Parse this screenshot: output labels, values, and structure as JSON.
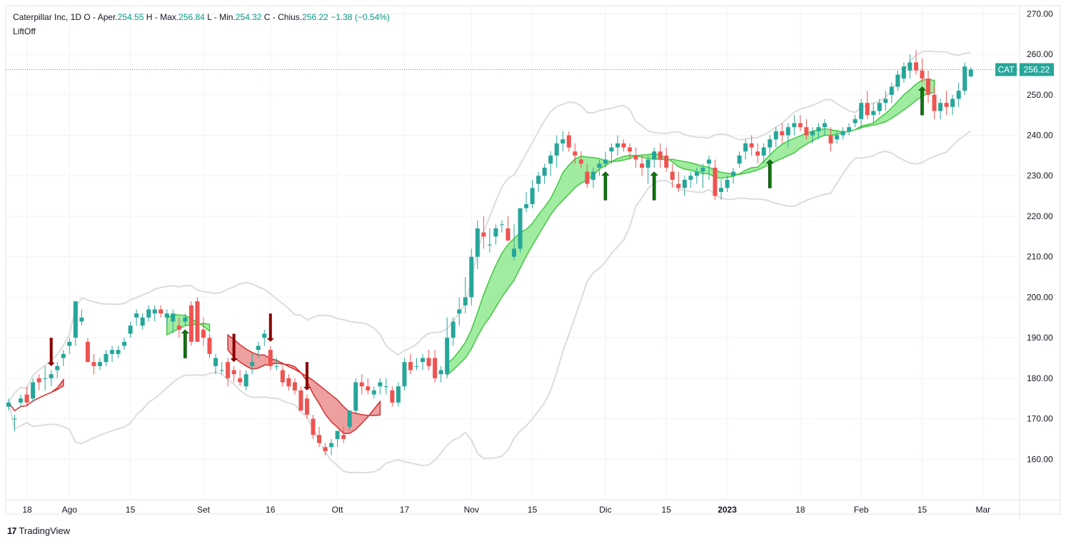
{
  "legend": {
    "symbol": "Caterpillar Inc, 1D",
    "open_label": "O - Aper.",
    "open": "254.55",
    "high_label": "H - Max.",
    "high": "256.84",
    "low_label": "L - Min.",
    "low": "254.32",
    "close_label": "C - Chius.",
    "close": "256.22",
    "change": "−1.38 (−0.54%)",
    "indicator": "LiftOff"
  },
  "price_tag": {
    "ticker": "CAT",
    "value": "256.22",
    "color": "#26a69a"
  },
  "brand": "TradingView",
  "colors": {
    "up": "#26a69a",
    "down": "#ef5350",
    "green_band": "#82e682",
    "red_band": "#e88080",
    "bb": "#dcdcdc"
  },
  "chart_data": {
    "type": "candlestick",
    "ylim": [
      150,
      272
    ],
    "last_price": 256.22,
    "y_ticks": [
      "270.00",
      "260.00",
      "250.00",
      "240.00",
      "230.00",
      "220.00",
      "210.00",
      "200.00",
      "190.00",
      "180.00",
      "170.00",
      "160.00"
    ],
    "y_tick_values": [
      270,
      260,
      250,
      240,
      230,
      220,
      210,
      200,
      190,
      180,
      170,
      160
    ],
    "x_ticks": [
      {
        "label": "18",
        "i": 0
      },
      {
        "label": "Ago",
        "i": 10
      },
      {
        "label": "15",
        "i": 20
      },
      {
        "label": "Set",
        "i": 32
      },
      {
        "label": "16",
        "i": 43
      },
      {
        "label": "Ott",
        "i": 54
      },
      {
        "label": "17",
        "i": 65
      },
      {
        "label": "Nov",
        "i": 76
      },
      {
        "label": "15",
        "i": 86
      },
      {
        "label": "Dic",
        "i": 98
      },
      {
        "label": "15",
        "i": 108
      },
      {
        "label": "2023",
        "i": 118,
        "bold": true
      },
      {
        "label": "18",
        "i": 130
      },
      {
        "label": "Feb",
        "i": 140
      },
      {
        "label": "15",
        "i": 150
      },
      {
        "label": "Mar",
        "i": 160
      }
    ],
    "candles": [
      [
        173,
        175,
        172,
        174
      ],
      [
        170,
        171,
        167,
        170
      ],
      [
        174,
        176,
        173,
        175
      ],
      [
        176,
        178,
        173,
        174
      ],
      [
        175,
        180,
        174,
        179
      ],
      [
        180,
        181,
        177,
        179
      ],
      [
        180,
        183,
        177,
        180
      ],
      [
        180,
        182,
        178,
        181
      ],
      [
        182,
        184,
        180,
        183
      ],
      [
        185,
        187,
        183,
        186
      ],
      [
        188,
        190,
        186,
        189
      ],
      [
        190,
        199,
        188,
        199
      ],
      [
        194,
        197,
        193,
        195
      ],
      [
        189,
        190,
        185,
        184
      ],
      [
        184,
        186,
        181,
        183
      ],
      [
        183,
        185,
        182,
        184
      ],
      [
        184,
        187,
        183,
        186
      ],
      [
        186,
        188,
        184,
        187
      ],
      [
        186,
        188,
        185,
        187
      ],
      [
        188,
        190,
        187,
        189
      ],
      [
        191,
        194,
        190,
        193
      ],
      [
        195,
        197,
        193,
        196
      ],
      [
        193,
        196,
        192,
        195
      ],
      [
        195,
        198,
        194,
        197
      ],
      [
        196,
        198,
        194,
        197
      ],
      [
        197,
        198,
        195,
        196
      ],
      [
        195,
        197,
        193,
        196
      ],
      [
        194,
        197,
        191,
        196
      ],
      [
        193,
        195,
        190,
        192
      ],
      [
        194,
        196,
        193,
        195
      ],
      [
        198,
        199,
        188,
        189
      ],
      [
        199,
        200,
        189,
        189
      ],
      [
        192,
        195,
        188,
        190
      ],
      [
        190,
        191,
        185,
        186
      ],
      [
        183,
        186,
        181,
        185
      ],
      [
        182,
        184,
        181,
        182
      ],
      [
        184,
        185,
        178,
        180
      ],
      [
        182,
        183,
        179,
        181
      ],
      [
        180,
        182,
        178,
        179
      ],
      [
        178,
        182,
        177,
        181
      ],
      [
        183,
        186,
        181,
        184
      ],
      [
        187,
        189,
        185,
        188
      ],
      [
        190,
        192,
        188,
        191
      ],
      [
        187,
        188,
        182,
        183
      ],
      [
        183,
        185,
        182,
        183
      ],
      [
        182,
        183,
        178,
        179
      ],
      [
        180,
        181,
        177,
        178
      ],
      [
        179,
        180,
        176,
        177
      ],
      [
        177,
        178,
        172,
        172
      ],
      [
        175,
        176,
        170,
        171
      ],
      [
        170,
        171,
        165,
        166
      ],
      [
        166,
        168,
        163,
        164
      ],
      [
        163,
        164,
        161,
        162
      ],
      [
        163,
        165,
        161,
        164
      ],
      [
        165,
        167,
        163,
        167
      ],
      [
        166,
        168,
        164,
        165
      ],
      [
        168,
        172,
        167,
        172
      ],
      [
        172,
        180,
        171,
        179
      ],
      [
        179,
        181,
        176,
        178
      ],
      [
        178,
        180,
        176,
        177
      ],
      [
        176,
        178,
        175,
        177
      ],
      [
        178,
        180,
        176,
        179
      ],
      [
        178,
        180,
        176,
        178
      ],
      [
        177,
        178,
        173,
        174
      ],
      [
        174,
        179,
        173,
        178
      ],
      [
        178,
        185,
        177,
        184
      ],
      [
        184,
        186,
        181,
        182
      ],
      [
        183,
        185,
        182,
        183
      ],
      [
        184,
        186,
        182,
        185
      ],
      [
        185,
        187,
        182,
        183
      ],
      [
        185,
        187,
        179,
        180
      ],
      [
        181,
        183,
        179,
        182
      ],
      [
        181,
        195,
        180,
        190
      ],
      [
        190,
        195,
        188,
        194
      ],
      [
        196,
        200,
        193,
        197
      ],
      [
        198,
        205,
        196,
        200
      ],
      [
        200,
        212,
        198,
        210
      ],
      [
        210,
        219,
        207,
        217
      ],
      [
        216,
        220,
        212,
        215
      ],
      [
        213,
        217,
        211,
        213
      ],
      [
        215,
        218,
        213,
        217
      ],
      [
        218,
        219,
        216,
        218
      ],
      [
        217,
        220,
        214,
        214
      ],
      [
        210,
        218,
        209,
        212
      ],
      [
        212,
        222,
        211,
        222
      ],
      [
        222,
        226,
        221,
        223
      ],
      [
        223,
        229,
        222,
        227
      ],
      [
        228,
        231,
        226,
        230
      ],
      [
        230,
        233,
        228,
        232
      ],
      [
        233,
        236,
        230,
        235
      ],
      [
        235,
        240,
        232,
        238
      ],
      [
        238,
        241,
        236,
        239
      ],
      [
        240,
        241,
        236,
        237
      ],
      [
        236,
        238,
        233,
        235
      ],
      [
        234,
        236,
        232,
        233
      ],
      [
        231,
        233,
        227,
        228
      ],
      [
        229,
        232,
        227,
        231
      ],
      [
        232,
        234,
        230,
        233
      ],
      [
        233,
        236,
        232,
        234
      ],
      [
        236,
        238,
        233,
        237
      ],
      [
        237,
        240,
        235,
        238
      ],
      [
        238,
        239,
        236,
        237
      ],
      [
        237,
        238,
        234,
        236
      ],
      [
        235,
        237,
        232,
        234
      ],
      [
        233,
        235,
        230,
        232
      ],
      [
        232,
        235,
        228,
        234
      ],
      [
        234,
        237,
        232,
        236
      ],
      [
        236,
        238,
        232,
        234
      ],
      [
        235,
        237,
        231,
        232
      ],
      [
        231,
        233,
        227,
        229
      ],
      [
        228,
        231,
        226,
        227
      ],
      [
        227,
        230,
        225,
        229
      ],
      [
        229,
        231,
        227,
        230
      ],
      [
        230,
        232,
        228,
        231
      ],
      [
        231,
        233,
        227,
        232
      ],
      [
        233,
        235,
        229,
        234
      ],
      [
        232,
        234,
        224,
        225
      ],
      [
        226,
        229,
        224,
        227
      ],
      [
        227,
        230,
        226,
        229
      ],
      [
        230,
        232,
        228,
        231
      ],
      [
        233,
        236,
        232,
        235
      ],
      [
        236,
        239,
        234,
        238
      ],
      [
        238,
        240,
        235,
        237
      ],
      [
        236,
        238,
        233,
        235
      ],
      [
        235,
        238,
        233,
        237
      ],
      [
        237,
        240,
        235,
        239
      ],
      [
        239,
        242,
        237,
        241
      ],
      [
        241,
        243,
        238,
        240
      ],
      [
        240,
        243,
        237,
        242
      ],
      [
        242,
        245,
        240,
        243
      ],
      [
        243,
        245,
        241,
        242
      ],
      [
        242,
        244,
        239,
        240
      ],
      [
        240,
        242,
        238,
        241
      ],
      [
        241,
        243,
        239,
        242
      ],
      [
        242,
        244,
        240,
        243
      ],
      [
        240,
        242,
        236,
        238
      ],
      [
        239,
        241,
        238,
        240
      ],
      [
        240,
        242,
        239,
        241
      ],
      [
        241,
        243,
        240,
        242
      ],
      [
        243,
        245,
        242,
        244
      ],
      [
        244,
        249,
        242,
        248
      ],
      [
        248,
        251,
        244,
        245
      ],
      [
        245,
        248,
        243,
        246
      ],
      [
        246,
        249,
        245,
        248
      ],
      [
        248,
        251,
        246,
        249
      ],
      [
        250,
        253,
        248,
        252
      ],
      [
        252,
        256,
        251,
        255
      ],
      [
        254,
        258,
        253,
        257
      ],
      [
        256,
        260,
        254,
        258
      ],
      [
        258,
        261,
        255,
        256
      ],
      [
        256,
        259,
        253,
        254
      ],
      [
        254,
        256,
        248,
        250
      ],
      [
        250,
        252,
        244,
        246
      ],
      [
        246,
        249,
        244,
        248
      ],
      [
        248,
        251,
        245,
        247
      ],
      [
        247,
        250,
        245,
        249
      ],
      [
        249,
        253,
        247,
        251
      ],
      [
        251,
        258,
        250,
        257
      ],
      [
        254.55,
        256.84,
        254.32,
        256.22
      ]
    ]
  }
}
